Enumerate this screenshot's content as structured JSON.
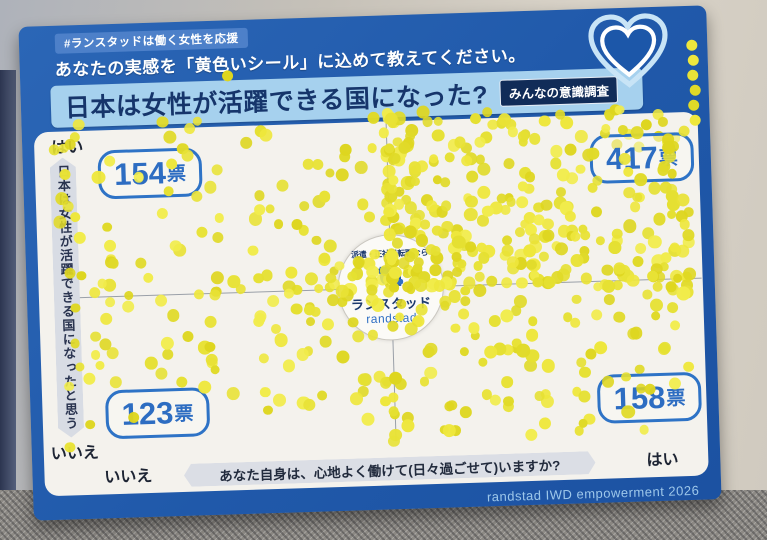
{
  "header": {
    "hashtag_badge": "#ランスタッドは働く女性を応援",
    "prompt": "あなたの実感を「黄色いシール」に込めて教えてください。",
    "title": "日本は女性が活躍できる国になった?",
    "survey_badge": "みんなの意識調査"
  },
  "logo": {
    "tagline": "派遣・正社員転職なら",
    "brand_jp": "ランスタッド",
    "brand_en": "randstad"
  },
  "footer": {
    "credit": "randstad IWD empowerment 2026"
  },
  "colors": {
    "poster_blue": "#2059aa",
    "title_bar_blue": "#a6d1ee",
    "navy_text": "#16356b",
    "count_blue": "#2e73c6",
    "sticker_yellow": "#e8e236",
    "board_white": "#f4f2ed"
  },
  "chart_data": {
    "type": "scatter",
    "subtype": "quadrant-sticker-vote-board",
    "title": "日本は女性が活躍できる国になった?",
    "marker": "yellow-sticker-dot",
    "marker_color": "#e8e236",
    "vote_unit": "票",
    "x_axis": {
      "question": "あなた自身は、心地よく働けて(日々過ごせて)いますか?",
      "left_label": "いいえ",
      "right_label": "はい"
    },
    "y_axis": {
      "question": "日本は女性が活躍できる国になったと思う",
      "top_label": "はい",
      "bottom_label": "いいえ"
    },
    "quadrant_votes": {
      "top_left": {
        "votes": 154,
        "label": "154票"
      },
      "top_right": {
        "votes": 417,
        "label": "417票"
      },
      "bottom_left": {
        "votes": 123,
        "label": "123票"
      },
      "bottom_right": {
        "votes": 158,
        "label": "158票"
      }
    }
  }
}
